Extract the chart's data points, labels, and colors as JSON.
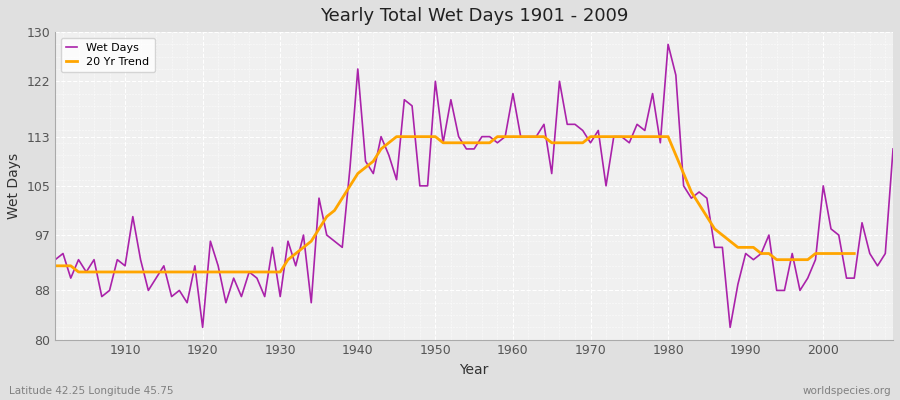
{
  "title": "Yearly Total Wet Days 1901 - 2009",
  "xlabel": "Year",
  "ylabel": "Wet Days",
  "subtitle_left": "Latitude 42.25 Longitude 45.75",
  "subtitle_right": "worldspecies.org",
  "legend_entries": [
    "Wet Days",
    "20 Yr Trend"
  ],
  "line_color": "#aa22aa",
  "trend_color": "#FFA500",
  "ylim": [
    80,
    130
  ],
  "xlim": [
    1901,
    2009
  ],
  "yticks": [
    80,
    88,
    97,
    105,
    113,
    122,
    130
  ],
  "xticks": [
    1910,
    1920,
    1930,
    1940,
    1950,
    1960,
    1970,
    1980,
    1990,
    2000
  ],
  "background_color": "#e0e0e0",
  "plot_bg_color": "#f0f0f0",
  "years": [
    1901,
    1902,
    1903,
    1904,
    1905,
    1906,
    1907,
    1908,
    1909,
    1910,
    1911,
    1912,
    1913,
    1914,
    1915,
    1916,
    1917,
    1918,
    1919,
    1920,
    1921,
    1922,
    1923,
    1924,
    1925,
    1926,
    1927,
    1928,
    1929,
    1930,
    1931,
    1932,
    1933,
    1934,
    1935,
    1936,
    1937,
    1938,
    1939,
    1940,
    1941,
    1942,
    1943,
    1944,
    1945,
    1946,
    1947,
    1948,
    1949,
    1950,
    1951,
    1952,
    1953,
    1954,
    1955,
    1956,
    1957,
    1958,
    1959,
    1960,
    1961,
    1962,
    1963,
    1964,
    1965,
    1966,
    1967,
    1968,
    1969,
    1970,
    1971,
    1972,
    1973,
    1974,
    1975,
    1976,
    1977,
    1978,
    1979,
    1980,
    1981,
    1982,
    1983,
    1984,
    1985,
    1986,
    1987,
    1988,
    1989,
    1990,
    1991,
    1992,
    1993,
    1994,
    1995,
    1996,
    1997,
    1998,
    1999,
    2000,
    2001,
    2002,
    2003,
    2004,
    2005,
    2006,
    2007,
    2008,
    2009
  ],
  "wet_days": [
    93,
    94,
    90,
    93,
    91,
    93,
    87,
    88,
    93,
    92,
    100,
    93,
    88,
    90,
    92,
    87,
    88,
    86,
    92,
    82,
    96,
    92,
    86,
    90,
    87,
    91,
    90,
    87,
    95,
    87,
    96,
    92,
    97,
    86,
    103,
    97,
    96,
    95,
    108,
    124,
    109,
    107,
    113,
    110,
    106,
    119,
    118,
    105,
    105,
    122,
    112,
    119,
    113,
    111,
    111,
    113,
    113,
    112,
    113,
    120,
    113,
    113,
    113,
    115,
    107,
    122,
    115,
    115,
    114,
    112,
    114,
    105,
    113,
    113,
    112,
    115,
    114,
    120,
    112,
    128,
    123,
    105,
    103,
    104,
    103,
    95,
    95,
    82,
    89,
    94,
    93,
    94,
    97,
    88,
    88,
    94,
    88,
    90,
    93,
    105,
    98,
    97,
    90,
    90,
    99,
    94,
    92,
    94,
    111
  ],
  "trend": [
    92,
    92,
    92,
    91,
    91,
    91,
    91,
    91,
    91,
    91,
    91,
    91,
    91,
    91,
    91,
    91,
    91,
    91,
    91,
    91,
    91,
    91,
    91,
    91,
    91,
    91,
    91,
    91,
    91,
    91,
    93,
    94,
    95,
    96,
    98,
    100,
    101,
    103,
    105,
    107,
    108,
    109,
    111,
    112,
    113,
    113,
    113,
    113,
    113,
    113,
    112,
    112,
    112,
    112,
    112,
    112,
    112,
    113,
    113,
    113,
    113,
    113,
    113,
    113,
    112,
    112,
    112,
    112,
    112,
    113,
    113,
    113,
    113,
    113,
    113,
    113,
    113,
    113,
    113,
    113,
    110,
    107,
    104,
    102,
    100,
    98,
    97,
    96,
    95,
    95,
    95,
    94,
    94,
    93,
    93,
    93,
    93,
    93,
    94,
    94,
    94,
    94,
    94,
    94,
    null,
    null,
    null,
    null,
    null
  ]
}
